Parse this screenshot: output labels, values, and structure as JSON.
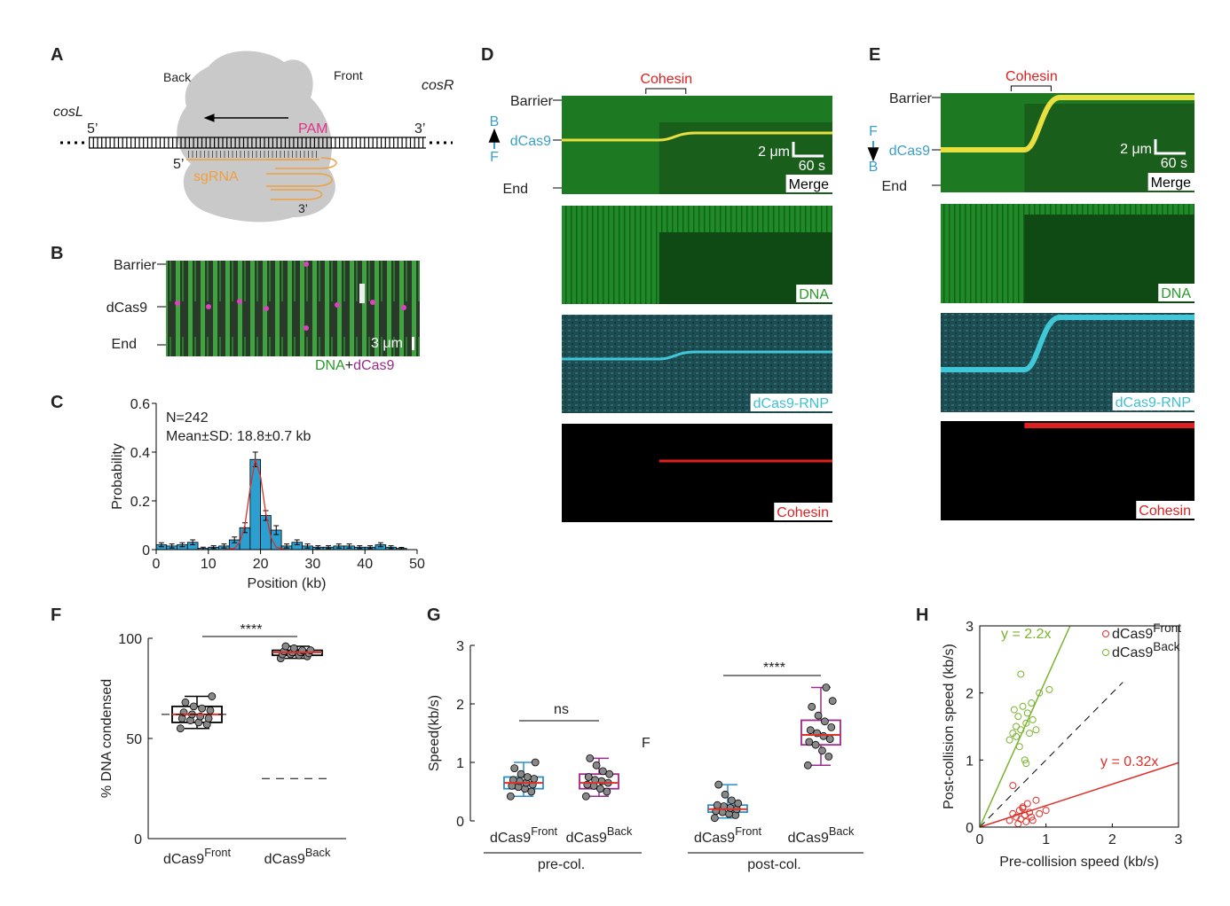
{
  "panel_labels": [
    "A",
    "B",
    "C",
    "D",
    "E",
    "F",
    "G",
    "H"
  ],
  "diagram": {
    "back": "Back",
    "front": "Front",
    "cosL": "cosL",
    "cosR": "cosR",
    "dna_5": "5’",
    "dna_3": "3’",
    "pam": "PAM",
    "rna_5": "5’",
    "sgrna": "sgRNA",
    "rna_3": "3’"
  },
  "kymograph_b": {
    "barrier": "Barrier",
    "dcas9": "dCas9",
    "end": "End",
    "scale": "3 μm",
    "legend": [
      "DNA",
      "+",
      "dCas9"
    ]
  },
  "kymograph_d": {
    "cohesin": "Cohesin",
    "barrier": "Barrier",
    "dir_top": "B",
    "dcas9": "dCas9",
    "dir_bottom": "F",
    "end": "End",
    "scale_x": "2 μm",
    "scale_t": "60 s",
    "channels": [
      "Merge",
      "DNA",
      "dCas9-RNP",
      "Cohesin"
    ]
  },
  "kymograph_e": {
    "cohesin": "Cohesin",
    "barrier": "Barrier",
    "dir_top": "F",
    "dcas9": "dCas9",
    "dir_bottom": "B",
    "end": "End",
    "scale_x": "2 μm",
    "scale_t": "60 s",
    "channels": [
      "Merge",
      "DNA",
      "dCas9-RNP",
      "Cohesin"
    ]
  },
  "chart_data": [
    {
      "type": "histogram",
      "annotations": [
        "N=242",
        "Mean±SD: 18.8±0.7 kb"
      ],
      "x_label": "Position (kb)",
      "y_label": "Probability",
      "color": "#2a9fd0",
      "bins": [
        0,
        2,
        4,
        6,
        8,
        10,
        12,
        14,
        16,
        18,
        20,
        22,
        24,
        26,
        28,
        30,
        32,
        34,
        36,
        38,
        40,
        42,
        44,
        46,
        48
      ],
      "values": [
        0.02,
        0.015,
        0.02,
        0.03,
        0.005,
        0.01,
        0.015,
        0.04,
        0.09,
        0.37,
        0.14,
        0.08,
        0.015,
        0.03,
        0.015,
        0.01,
        0.01,
        0.015,
        0.015,
        0.01,
        0.01,
        0.02,
        0.01,
        0.005
      ],
      "errors": [
        0.008,
        0.008,
        0.008,
        0.01,
        0.005,
        0.006,
        0.008,
        0.012,
        0.02,
        0.03,
        0.02,
        0.018,
        0.008,
        0.01,
        0.008,
        0.006,
        0.006,
        0.008,
        0.008,
        0.006,
        0.006,
        0.008,
        0.006,
        0.004
      ],
      "fit": {
        "color": "#e0302a",
        "x": [
          13,
          15,
          16,
          17,
          18,
          19,
          20,
          21,
          22,
          23,
          25
        ],
        "values": [
          0,
          0.005,
          0.03,
          0.1,
          0.25,
          0.37,
          0.3,
          0.15,
          0.05,
          0.01,
          0
        ]
      },
      "xlim": [
        0,
        50
      ],
      "ylim": [
        0,
        0.6
      ],
      "xticks": [
        0,
        10,
        20,
        30,
        40,
        50
      ],
      "yticks": [
        0,
        0.2,
        0.4,
        0.6
      ]
    },
    {
      "type": "box",
      "y_label": "% DNA condensed",
      "significance": "****",
      "box_color": "#000000",
      "median_color": "#e0302a",
      "categories": [
        {
          "text": "dCas9",
          "sup": "Front"
        },
        {
          "text": "dCas9",
          "sup": "Back"
        }
      ],
      "boxes": [
        {
          "min": 55,
          "q1": 58,
          "median": 62,
          "q3": 66,
          "max": 71,
          "points": [
            55,
            57,
            58,
            59,
            60,
            60,
            61,
            62,
            63,
            64,
            65,
            66,
            68,
            71
          ]
        },
        {
          "min": 90,
          "q1": 91.5,
          "median": 93,
          "q3": 94,
          "max": 96,
          "points": [
            90,
            91,
            91.5,
            92,
            92,
            92.5,
            93,
            93,
            93.5,
            94,
            94,
            95,
            96
          ]
        }
      ],
      "reference_values": [
        62,
        30
      ],
      "ylim": [
        0,
        100
      ],
      "yticks": [
        0,
        50,
        100
      ]
    },
    {
      "type": "box",
      "y_label": "Speed(kb/s)",
      "stray_label": "F",
      "median_color": "#e0302a",
      "categories": [
        {
          "text": "dCas9",
          "sup": "Front"
        },
        {
          "text": "dCas9",
          "sup": "Back"
        },
        {
          "text": "dCas9",
          "sup": "Front"
        },
        {
          "text": "dCas9",
          "sup": "Back"
        }
      ],
      "colors": [
        "#2a8fc8",
        "#9b2a8a",
        "#2a8fc8",
        "#9b2a8a"
      ],
      "groups": [
        "pre-col.",
        "post-col."
      ],
      "significance": [
        "ns",
        "****"
      ],
      "boxes": [
        {
          "min": 0.42,
          "q1": 0.55,
          "median": 0.65,
          "q3": 0.75,
          "max": 1.0,
          "points": [
            0.42,
            0.5,
            0.55,
            0.58,
            0.6,
            0.62,
            0.65,
            0.68,
            0.7,
            0.72,
            0.75,
            0.8,
            0.9,
            1.0
          ]
        },
        {
          "min": 0.42,
          "q1": 0.55,
          "median": 0.65,
          "q3": 0.8,
          "max": 1.07,
          "points": [
            0.42,
            0.5,
            0.55,
            0.6,
            0.62,
            0.65,
            0.68,
            0.7,
            0.75,
            0.8,
            0.85,
            0.95,
            1.07
          ]
        },
        {
          "min": 0.05,
          "q1": 0.15,
          "median": 0.2,
          "q3": 0.27,
          "max": 0.62,
          "points": [
            0.05,
            0.1,
            0.12,
            0.15,
            0.17,
            0.2,
            0.22,
            0.25,
            0.27,
            0.3,
            0.35,
            0.45,
            0.62
          ]
        },
        {
          "min": 0.95,
          "q1": 1.3,
          "median": 1.47,
          "q3": 1.72,
          "max": 2.28,
          "points": [
            0.95,
            1.1,
            1.2,
            1.3,
            1.35,
            1.4,
            1.45,
            1.5,
            1.55,
            1.6,
            1.7,
            1.8,
            1.95,
            2.05,
            2.28
          ]
        }
      ],
      "ylim": [
        0,
        3
      ],
      "yticks": [
        0,
        1,
        2,
        3
      ]
    },
    {
      "type": "scatter",
      "x_label": "Pre-collision speed (kb/s)",
      "y_label": "Post-collision speed (kb/s)",
      "identity_line": true,
      "series": [
        {
          "name": "dCas9",
          "name_sup": "Front",
          "color": "#e0302a",
          "x": [
            0.45,
            0.5,
            0.55,
            0.58,
            0.6,
            0.62,
            0.65,
            0.68,
            0.7,
            0.72,
            0.75,
            0.8,
            0.85,
            0.9,
            1.0,
            0.5,
            0.65,
            0.78
          ],
          "values": [
            0.1,
            0.2,
            0.15,
            0.05,
            0.25,
            0.12,
            0.3,
            0.18,
            0.08,
            0.35,
            0.22,
            0.1,
            0.4,
            0.2,
            0.25,
            0.62,
            0.28,
            0.15
          ]
        },
        {
          "name": "dCas9",
          "name_sup": "Back",
          "color": "#7ab32e",
          "x": [
            0.45,
            0.5,
            0.52,
            0.55,
            0.58,
            0.6,
            0.62,
            0.65,
            0.68,
            0.7,
            0.72,
            0.75,
            0.78,
            0.8,
            0.85,
            0.62,
            0.7,
            1.05,
            0.9,
            0.55
          ],
          "values": [
            1.3,
            1.4,
            1.75,
            1.5,
            1.65,
            1.2,
            1.45,
            1.8,
            1.0,
            1.55,
            1.7,
            1.4,
            1.85,
            1.6,
            1.45,
            2.28,
            0.95,
            2.05,
            2.0,
            1.35
          ]
        }
      ],
      "fits": [
        {
          "label": "y = 2.2x",
          "slope": 2.2,
          "color": "#7ab32e"
        },
        {
          "label": "y = 0.32x",
          "slope": 0.32,
          "color": "#e0302a"
        }
      ],
      "xlim": [
        0,
        3
      ],
      "ylim": [
        0,
        3
      ],
      "xticks": [
        0,
        1,
        2,
        3
      ],
      "yticks": [
        0,
        1,
        2,
        3
      ]
    }
  ]
}
